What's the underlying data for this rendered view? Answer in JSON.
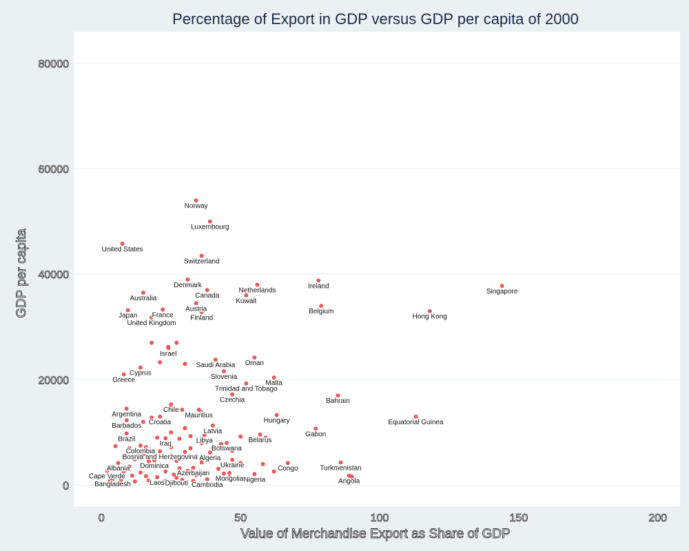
{
  "chart_data": {
    "type": "scatter",
    "title": "Percentage of Export in GDP versus GDP per capita of 2000",
    "xlabel": "Value of Merchandise Export as Share of GDP",
    "ylabel": "GDP per capita",
    "xlim": [
      -10,
      208
    ],
    "ylim": [
      -4000,
      86000
    ],
    "x_ticks": [
      0,
      50,
      100,
      150,
      200
    ],
    "y_ticks": [
      0,
      20000,
      40000,
      60000,
      80000
    ],
    "grid": "horizontal",
    "point_color": "#ff5a5a",
    "labeled_points": [
      {
        "label": "Norway",
        "x": 34,
        "y": 54000
      },
      {
        "label": "Luxembourg",
        "x": 39,
        "y": 50000
      },
      {
        "label": "United States",
        "x": 7.5,
        "y": 45800
      },
      {
        "label": "Switzerland",
        "x": 36,
        "y": 43500
      },
      {
        "label": "Denmark",
        "x": 31,
        "y": 39000
      },
      {
        "label": "Ireland",
        "x": 78,
        "y": 38800
      },
      {
        "label": "Singapore",
        "x": 144,
        "y": 37800
      },
      {
        "label": "Netherlands",
        "x": 56,
        "y": 38000
      },
      {
        "label": "Australia",
        "x": 15,
        "y": 36500
      },
      {
        "label": "Canada",
        "x": 38,
        "y": 37000
      },
      {
        "label": "Kuwait",
        "x": 52,
        "y": 36000
      },
      {
        "label": "Austria",
        "x": 34,
        "y": 34500
      },
      {
        "label": "Belgium",
        "x": 79,
        "y": 34000
      },
      {
        "label": "Japan",
        "x": 9.5,
        "y": 33200
      },
      {
        "label": "France",
        "x": 22,
        "y": 33300
      },
      {
        "label": "Hong Kong",
        "x": 118,
        "y": 33000
      },
      {
        "label": "Finland",
        "x": 36,
        "y": 32800
      },
      {
        "label": "United Kingdom",
        "x": 18,
        "y": 31800
      },
      {
        "label": "Israel",
        "x": 24,
        "y": 26000
      },
      {
        "label": "Saudi Arabia",
        "x": 41,
        "y": 23800
      },
      {
        "label": "Oman",
        "x": 55,
        "y": 24200
      },
      {
        "label": "Cyprus",
        "x": 14,
        "y": 22300
      },
      {
        "label": "Slovenia",
        "x": 44,
        "y": 21600
      },
      {
        "label": "Greece",
        "x": 8,
        "y": 21000
      },
      {
        "label": "Malta",
        "x": 62,
        "y": 20400
      },
      {
        "label": "Trinidad and Tobago",
        "x": 52,
        "y": 19300
      },
      {
        "label": "Czechia",
        "x": 47,
        "y": 17200
      },
      {
        "label": "Bahrain",
        "x": 85,
        "y": 17000
      },
      {
        "label": "Argentina",
        "x": 9,
        "y": 14500
      },
      {
        "label": "Chile",
        "x": 25,
        "y": 15300
      },
      {
        "label": "Mauritius",
        "x": 35,
        "y": 14300
      },
      {
        "label": "Croatia",
        "x": 21,
        "y": 13000
      },
      {
        "label": "Barbados",
        "x": 9,
        "y": 12300
      },
      {
        "label": "Hungary",
        "x": 63,
        "y": 13300
      },
      {
        "label": "Equatorial Guinea",
        "x": 113,
        "y": 13000
      },
      {
        "label": "Gabon",
        "x": 77,
        "y": 10700
      },
      {
        "label": "Latvia",
        "x": 40,
        "y": 11300
      },
      {
        "label": "Brazil",
        "x": 9,
        "y": 9800
      },
      {
        "label": "Libya",
        "x": 37,
        "y": 9500
      },
      {
        "label": "Belarus",
        "x": 57,
        "y": 9600
      },
      {
        "label": "Iraq",
        "x": 23,
        "y": 8900
      },
      {
        "label": "Colombia",
        "x": 14,
        "y": 7500
      },
      {
        "label": "Botswana",
        "x": 45,
        "y": 8000
      },
      {
        "label": "Bosnia and Herzegovina",
        "x": 21,
        "y": 6400
      },
      {
        "label": "Algeria",
        "x": 39,
        "y": 6200
      },
      {
        "label": "Dominica",
        "x": 19,
        "y": 4700
      },
      {
        "label": "Ukraine",
        "x": 47,
        "y": 4800
      },
      {
        "label": "Albania",
        "x": 6,
        "y": 4200
      },
      {
        "label": "Azerbaijan",
        "x": 33,
        "y": 3300
      },
      {
        "label": "Congo",
        "x": 67,
        "y": 4200
      },
      {
        "label": "Turkmenistan",
        "x": 86,
        "y": 4300
      },
      {
        "label": "Cape Verde",
        "x": 2,
        "y": 2700
      },
      {
        "label": "Mongolia",
        "x": 46,
        "y": 2300
      },
      {
        "label": "Nigeria",
        "x": 55,
        "y": 2100
      },
      {
        "label": "Angola",
        "x": 89,
        "y": 1800
      },
      {
        "label": "Bangladesh",
        "x": 4,
        "y": 1200
      },
      {
        "label": "Laos",
        "x": 20,
        "y": 1500
      },
      {
        "label": "Djibouti",
        "x": 27,
        "y": 1400
      },
      {
        "label": "Cambodia",
        "x": 38,
        "y": 1100
      }
    ],
    "unlabeled_points": [
      {
        "x": 12,
        "y": 30500
      },
      {
        "x": 18,
        "y": 27000
      },
      {
        "x": 27,
        "y": 27000
      },
      {
        "x": 24,
        "y": 26200
      },
      {
        "x": 21,
        "y": 23300
      },
      {
        "x": 30,
        "y": 23000
      },
      {
        "x": 25,
        "y": 14800
      },
      {
        "x": 29,
        "y": 14300
      },
      {
        "x": 32,
        "y": 13000
      },
      {
        "x": 36,
        "y": 13800
      },
      {
        "x": 18,
        "y": 12800
      },
      {
        "x": 15,
        "y": 12000
      },
      {
        "x": 13,
        "y": 13200
      },
      {
        "x": 11,
        "y": 13800
      },
      {
        "x": 25,
        "y": 10000
      },
      {
        "x": 30,
        "y": 10800
      },
      {
        "x": 42,
        "y": 10000
      },
      {
        "x": 50,
        "y": 9200
      },
      {
        "x": 59,
        "y": 9000
      },
      {
        "x": 20,
        "y": 9000
      },
      {
        "x": 28,
        "y": 8800
      },
      {
        "x": 32,
        "y": 9300
      },
      {
        "x": 22,
        "y": 8000
      },
      {
        "x": 36,
        "y": 8000
      },
      {
        "x": 43,
        "y": 7800
      },
      {
        "x": 5,
        "y": 7400
      },
      {
        "x": 10,
        "y": 7000
      },
      {
        "x": 16,
        "y": 7200
      },
      {
        "x": 25,
        "y": 7200
      },
      {
        "x": 32,
        "y": 7000
      },
      {
        "x": 40,
        "y": 7000
      },
      {
        "x": 13,
        "y": 6200
      },
      {
        "x": 30,
        "y": 6300
      },
      {
        "x": 47,
        "y": 6500
      },
      {
        "x": 8,
        "y": 5500
      },
      {
        "x": 15,
        "y": 5800
      },
      {
        "x": 25,
        "y": 5600
      },
      {
        "x": 34,
        "y": 5500
      },
      {
        "x": 12,
        "y": 4900
      },
      {
        "x": 17,
        "y": 4500
      },
      {
        "x": 27,
        "y": 4600
      },
      {
        "x": 36,
        "y": 4300
      },
      {
        "x": 50,
        "y": 4200
      },
      {
        "x": 58,
        "y": 4000
      },
      {
        "x": 4,
        "y": 3500
      },
      {
        "x": 10,
        "y": 3500
      },
      {
        "x": 21,
        "y": 3600
      },
      {
        "x": 28,
        "y": 3200
      },
      {
        "x": 42,
        "y": 3100
      },
      {
        "x": 8,
        "y": 2600
      },
      {
        "x": 14,
        "y": 2400
      },
      {
        "x": 23,
        "y": 2600
      },
      {
        "x": 31,
        "y": 2700
      },
      {
        "x": 44,
        "y": 2200
      },
      {
        "x": 62,
        "y": 2600
      },
      {
        "x": 90,
        "y": 1600
      },
      {
        "x": 6,
        "y": 1700
      },
      {
        "x": 11,
        "y": 1800
      },
      {
        "x": 16,
        "y": 1700
      },
      {
        "x": 26,
        "y": 2000
      },
      {
        "x": 34,
        "y": 1900
      },
      {
        "x": 46,
        "y": 1500
      },
      {
        "x": 7,
        "y": 1000
      },
      {
        "x": 17,
        "y": 900
      },
      {
        "x": 23,
        "y": 800
      },
      {
        "x": 29,
        "y": 1000
      },
      {
        "x": 33,
        "y": 800
      },
      {
        "x": 52,
        "y": 1200
      },
      {
        "x": 3,
        "y": 800
      },
      {
        "x": 12,
        "y": 700
      }
    ]
  }
}
